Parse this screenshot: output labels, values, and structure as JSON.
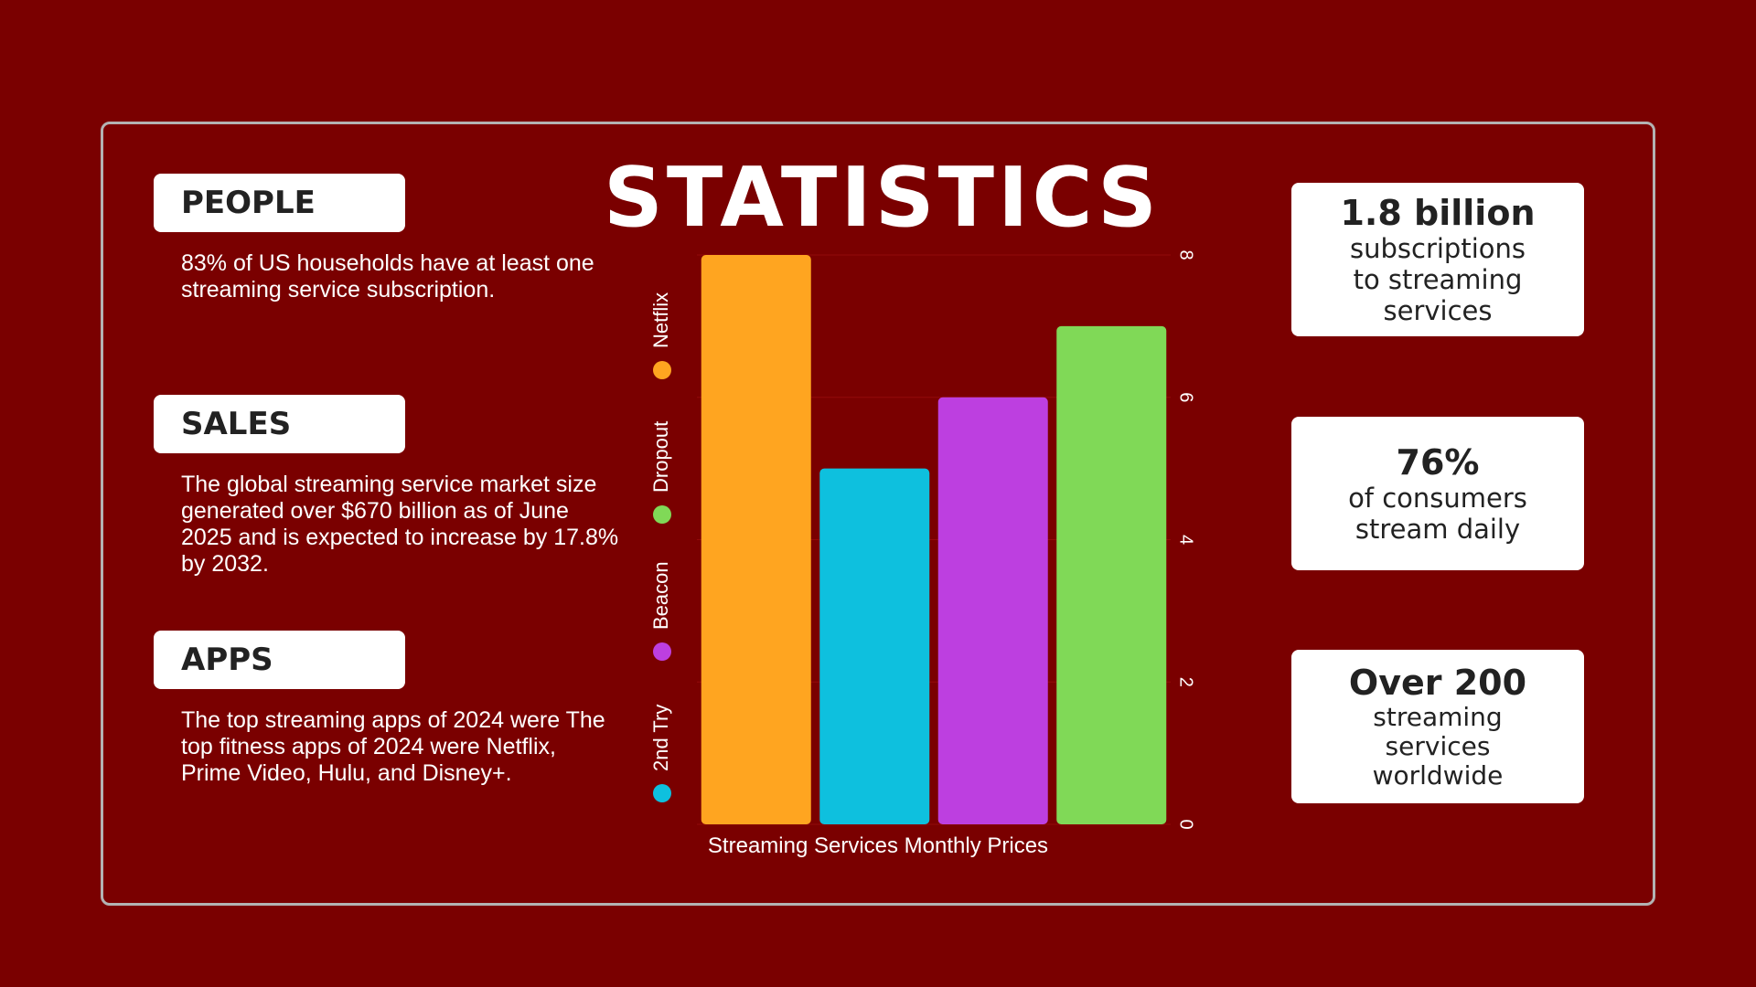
{
  "title": "STATISTICS",
  "left_sections": [
    {
      "label": "PEOPLE",
      "text": "83% of US households have at least one streaming service subscription."
    },
    {
      "label": "SALES",
      "text": "The global  streaming service market size generated over $670 billion as of June 2025 and is expected to increase by 17.8% by 2032."
    },
    {
      "label": "APPS",
      "text": "The top streaming apps of 2024 were The top fitness apps of 2024 were Netflix, Prime Video, Hulu, and Disney+."
    }
  ],
  "stats": [
    {
      "big": "1.8 billion",
      "small": "subscriptions to streaming services"
    },
    {
      "big": "76%",
      "small": "of consumers stream daily"
    },
    {
      "big": "Over 200",
      "small": "streaming services worldwide"
    }
  ],
  "colors": {
    "background": "#7a0000",
    "Netflix": "#ffa520",
    "2nd Try": "#0ec0de",
    "Beacon": "#bd3fe0",
    "Dropout": "#80d957"
  },
  "chart_data": {
    "type": "bar",
    "title": "",
    "xlabel": "Streaming Services Monthly Prices",
    "ylabel": "",
    "categories": [
      "Netflix",
      "2nd Try",
      "Beacon",
      "Dropout"
    ],
    "values": [
      8,
      5,
      6,
      7
    ],
    "ylim": [
      0,
      8
    ],
    "yticks": [
      "0",
      "2",
      "4",
      "6",
      "8"
    ],
    "legend": [
      "2nd Try",
      "Beacon",
      "Dropout",
      "Netflix"
    ],
    "legend_placement": "left",
    "grid": true
  }
}
